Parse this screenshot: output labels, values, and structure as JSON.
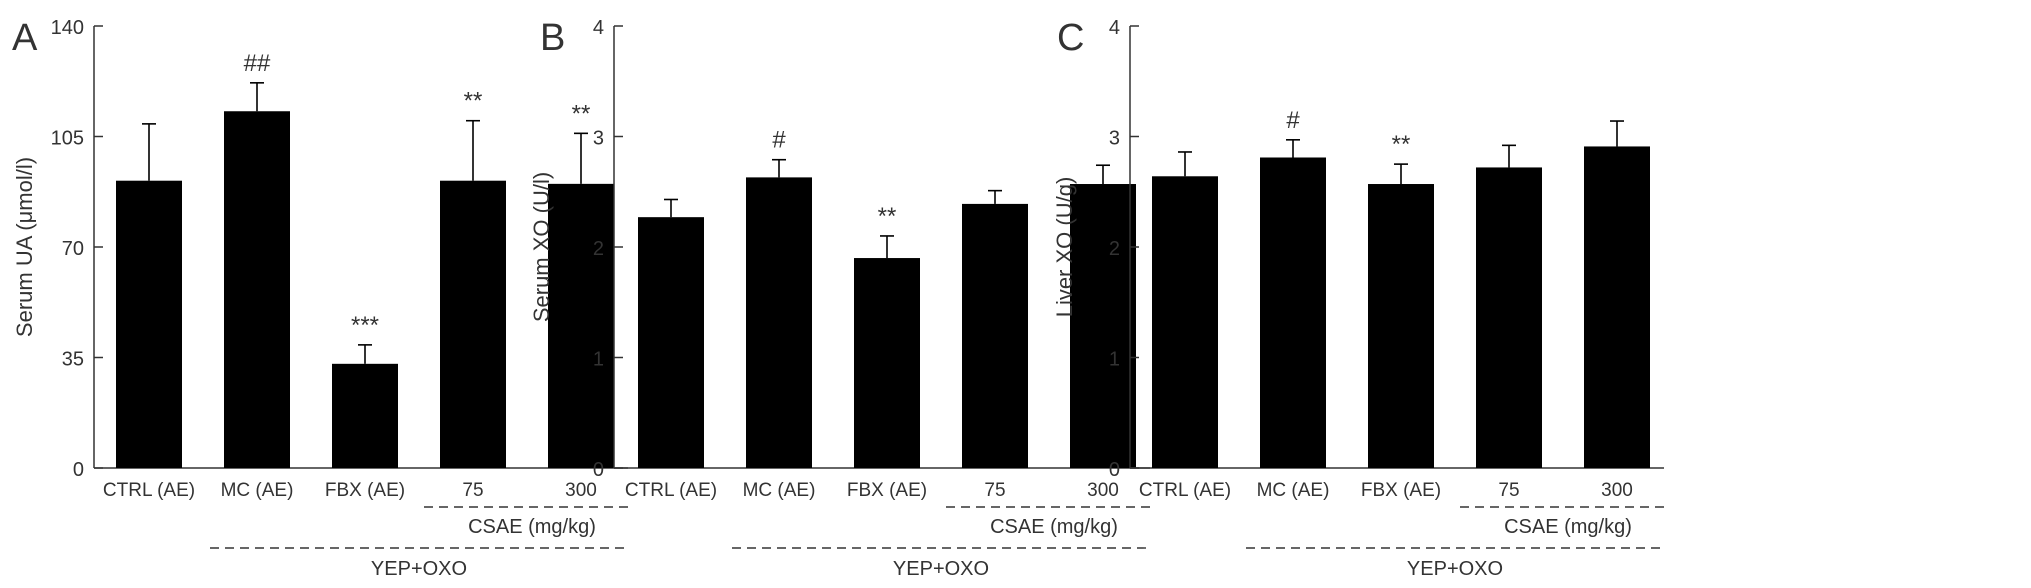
{
  "colors": {
    "bar": "#000000",
    "axis": "#333333",
    "text": "#333333"
  },
  "group_labels": {
    "csae": "CSAE (mg/kg)",
    "yep": "YEP+OXO"
  },
  "chart_data": [
    {
      "panel": "A",
      "type": "bar",
      "ylabel": "Serum UA (μmol/l)",
      "ylim": [
        0,
        140
      ],
      "yticks": [
        0,
        35,
        70,
        105,
        140
      ],
      "categories": [
        "CTRL (AE)",
        "MC (AE)",
        "FBX (AE)",
        "75",
        "300"
      ],
      "values": [
        91,
        113,
        33,
        91,
        90
      ],
      "errors": [
        18,
        9,
        6,
        19,
        16
      ],
      "annotations": [
        "",
        "##",
        "***",
        "**",
        "**"
      ],
      "grid": false
    },
    {
      "panel": "B",
      "type": "bar",
      "ylabel": "Serum XO (U/l)",
      "ylim": [
        0,
        4
      ],
      "yticks": [
        0,
        1,
        2,
        3,
        4
      ],
      "categories": [
        "CTRL (AE)",
        "MC (AE)",
        "FBX (AE)",
        "75",
        "300"
      ],
      "values": [
        2.27,
        2.63,
        1.9,
        2.39,
        2.57
      ],
      "errors": [
        0.16,
        0.16,
        0.2,
        0.12,
        0.17
      ],
      "annotations": [
        "",
        "#",
        "**",
        "",
        ""
      ],
      "grid": false
    },
    {
      "panel": "C",
      "type": "bar",
      "ylabel": "Liver XO (U/g)",
      "ylim": [
        0,
        4
      ],
      "yticks": [
        0,
        1,
        2,
        3,
        4
      ],
      "categories": [
        "CTRL (AE)",
        "MC (AE)",
        "FBX (AE)",
        "75",
        "300"
      ],
      "values": [
        2.64,
        2.81,
        2.57,
        2.72,
        2.91
      ],
      "errors": [
        0.22,
        0.16,
        0.18,
        0.2,
        0.23
      ],
      "annotations": [
        "",
        "#",
        "**",
        "",
        ""
      ],
      "grid": false
    }
  ]
}
